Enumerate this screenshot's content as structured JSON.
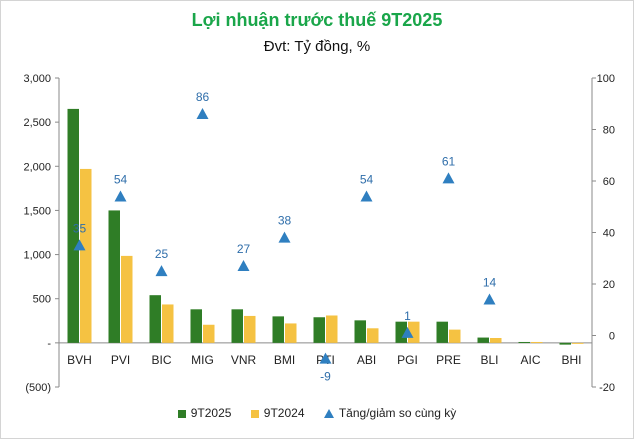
{
  "chart_data": {
    "type": "bar",
    "title": "Lợi nhuận trước thuế 9T2025",
    "subtitle": "Đvt: Tỷ đồng, %",
    "categories": [
      "BVH",
      "PVI",
      "BIC",
      "MIG",
      "VNR",
      "BMI",
      "PTI",
      "ABI",
      "PGI",
      "PRE",
      "BLI",
      "AIC",
      "BHI"
    ],
    "series": [
      {
        "name": "9T2025",
        "type": "bar",
        "axis": "left",
        "color": "#2f7d26",
        "values": [
          2650,
          1500,
          540,
          380,
          380,
          300,
          290,
          255,
          240,
          240,
          60,
          10,
          -20
        ]
      },
      {
        "name": "9T2024",
        "type": "bar",
        "axis": "left",
        "color": "#f5c242",
        "values": [
          1970,
          985,
          435,
          205,
          305,
          220,
          310,
          165,
          240,
          150,
          55,
          10,
          -10
        ]
      },
      {
        "name": "Tăng/giảm so cùng kỳ",
        "type": "scatter",
        "marker": "triangle",
        "axis": "right",
        "color": "#2f7fc0",
        "values": [
          35,
          54,
          25,
          86,
          27,
          38,
          -9,
          54,
          1,
          61,
          14,
          null,
          null
        ]
      }
    ],
    "y_left": {
      "min": -500,
      "max": 3000,
      "ticks": [
        -500,
        0,
        500,
        1000,
        1500,
        2000,
        2500,
        3000
      ],
      "tick_labels": [
        "(500)",
        "-",
        "500",
        "1,000",
        "1,500",
        "2,000",
        "2,500",
        "3,000"
      ]
    },
    "y_right": {
      "min": -20,
      "max": 100,
      "ticks": [
        -20,
        0,
        20,
        40,
        60,
        80,
        100
      ],
      "tick_labels": [
        "-20",
        "0",
        "20",
        "40",
        "60",
        "80",
        "100"
      ]
    },
    "legend": {
      "placement": "bottom",
      "items": [
        "9T2025",
        "9T2024",
        "Tăng/giảm so cùng kỳ"
      ]
    },
    "grid": false
  }
}
